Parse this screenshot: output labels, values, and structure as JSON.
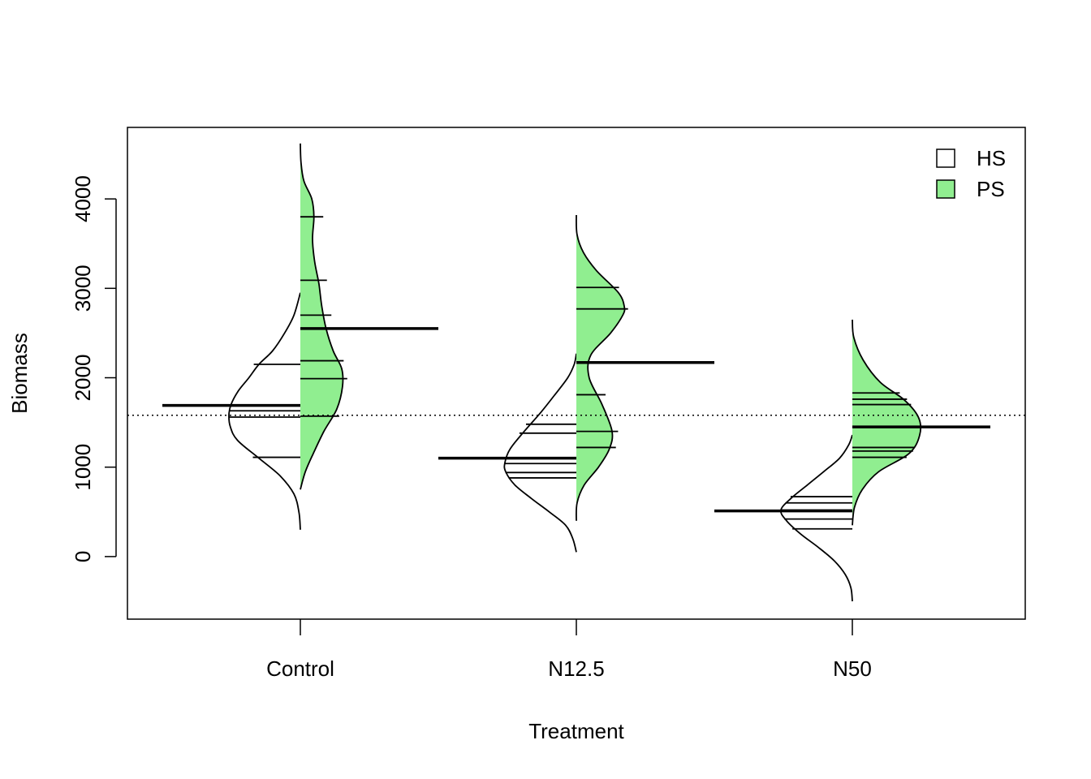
{
  "chart_data": {
    "type": "bean",
    "xlabel": "Treatment",
    "ylabel": "Biomass",
    "categories": [
      "Control",
      "N12.5",
      "N50"
    ],
    "ylim": [
      -700,
      4800
    ],
    "yticks": [
      0,
      1000,
      2000,
      3000,
      4000
    ],
    "overall_mean": 1580,
    "grid": false,
    "legend": {
      "position": "top-right",
      "entries": [
        {
          "label": "HS",
          "color": "#ffffff"
        },
        {
          "label": "PS",
          "color": "#90ee90"
        }
      ]
    },
    "series": [
      {
        "name": "HS",
        "side": "left",
        "color": "#ffffff",
        "groups": [
          {
            "category": "Control",
            "mean": 1690,
            "points": [
              2150,
              1630,
              1560,
              1110
            ],
            "density": [
              [
                300,
                0
              ],
              [
                500,
                0.02
              ],
              [
                700,
                0.09
              ],
              [
                900,
                0.28
              ],
              [
                1100,
                0.58
              ],
              [
                1300,
                0.88
              ],
              [
                1450,
                0.98
              ],
              [
                1580,
                1.0
              ],
              [
                1700,
                0.97
              ],
              [
                1850,
                0.87
              ],
              [
                2000,
                0.72
              ],
              [
                2150,
                0.58
              ],
              [
                2300,
                0.39
              ],
              [
                2500,
                0.22
              ],
              [
                2700,
                0.09
              ],
              [
                2950,
                0
              ]
            ]
          },
          {
            "category": "N12.5",
            "mean": 1100,
            "points": [
              1480,
              1380,
              1040,
              940,
              880
            ],
            "density": [
              [
                50,
                0
              ],
              [
                200,
                0.05
              ],
              [
                350,
                0.15
              ],
              [
                500,
                0.38
              ],
              [
                650,
                0.63
              ],
              [
                800,
                0.86
              ],
              [
                950,
                0.99
              ],
              [
                1050,
                1.0
              ],
              [
                1200,
                0.93
              ],
              [
                1400,
                0.73
              ],
              [
                1600,
                0.51
              ],
              [
                1800,
                0.31
              ],
              [
                2000,
                0.12
              ],
              [
                2150,
                0.03
              ],
              [
                2270,
                0
              ]
            ]
          },
          {
            "category": "N50",
            "mean": 510,
            "points": [
              670,
              600,
              520,
              420,
              310
            ],
            "density": [
              [
                -500,
                0
              ],
              [
                -350,
                0.02
              ],
              [
                -200,
                0.1
              ],
              [
                -50,
                0.25
              ],
              [
                100,
                0.47
              ],
              [
                250,
                0.72
              ],
              [
                400,
                0.92
              ],
              [
                520,
                1.0
              ],
              [
                650,
                0.86
              ],
              [
                800,
                0.63
              ],
              [
                950,
                0.4
              ],
              [
                1100,
                0.18
              ],
              [
                1250,
                0.05
              ],
              [
                1360,
                0
              ]
            ]
          }
        ]
      },
      {
        "name": "PS",
        "side": "right",
        "color": "#90ee90",
        "groups": [
          {
            "category": "Control",
            "mean": 2550,
            "points": [
              3800,
              3090,
              2700,
              2190,
              1990,
              1570
            ],
            "density": [
              [
                750,
                0
              ],
              [
                950,
                0.07
              ],
              [
                1150,
                0.18
              ],
              [
                1400,
                0.33
              ],
              [
                1650,
                0.51
              ],
              [
                1900,
                0.59
              ],
              [
                2100,
                0.58
              ],
              [
                2300,
                0.46
              ],
              [
                2550,
                0.36
              ],
              [
                2800,
                0.3
              ],
              [
                3050,
                0.26
              ],
              [
                3300,
                0.2
              ],
              [
                3550,
                0.17
              ],
              [
                3800,
                0.19
              ],
              [
                4000,
                0.16
              ],
              [
                4200,
                0.05
              ],
              [
                4400,
                0.01
              ],
              [
                4620,
                0
              ]
            ]
          },
          {
            "category": "N12.5",
            "mean": 2170,
            "points": [
              3010,
              2770,
              1810,
              1400,
              1220
            ],
            "density": [
              [
                400,
                0
              ],
              [
                600,
                0.01
              ],
              [
                800,
                0.11
              ],
              [
                1000,
                0.31
              ],
              [
                1200,
                0.46
              ],
              [
                1400,
                0.5
              ],
              [
                1700,
                0.36
              ],
              [
                2000,
                0.18
              ],
              [
                2250,
                0.2
              ],
              [
                2500,
                0.48
              ],
              [
                2700,
                0.65
              ],
              [
                2800,
                0.67
              ],
              [
                2950,
                0.59
              ],
              [
                3200,
                0.28
              ],
              [
                3400,
                0.1
              ],
              [
                3600,
                0.01
              ],
              [
                3820,
                0
              ]
            ]
          },
          {
            "category": "N50",
            "mean": 1450,
            "points": [
              1830,
              1760,
              1700,
              1220,
              1180,
              1110
            ],
            "density": [
              [
                350,
                0
              ],
              [
                550,
                0.03
              ],
              [
                750,
                0.14
              ],
              [
                950,
                0.37
              ],
              [
                1150,
                0.79
              ],
              [
                1350,
                0.94
              ],
              [
                1550,
                0.93
              ],
              [
                1750,
                0.73
              ],
              [
                1950,
                0.39
              ],
              [
                2200,
                0.15
              ],
              [
                2450,
                0.02
              ],
              [
                2650,
                0
              ]
            ]
          }
        ]
      }
    ]
  }
}
